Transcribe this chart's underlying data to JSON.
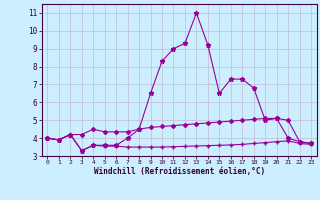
{
  "x": [
    0,
    1,
    2,
    3,
    4,
    5,
    6,
    7,
    8,
    9,
    10,
    11,
    12,
    13,
    14,
    15,
    16,
    17,
    18,
    19,
    20,
    21,
    22,
    23
  ],
  "line1": [
    4.0,
    3.9,
    4.2,
    3.3,
    3.6,
    3.6,
    3.6,
    4.0,
    4.5,
    6.5,
    8.3,
    9.0,
    9.3,
    11.0,
    9.2,
    6.5,
    7.3,
    7.3,
    6.8,
    5.0,
    5.1,
    4.0,
    3.8,
    3.7
  ],
  "line2": [
    4.0,
    3.9,
    4.2,
    4.2,
    4.5,
    4.35,
    4.35,
    4.35,
    4.5,
    4.6,
    4.65,
    4.7,
    4.75,
    4.8,
    4.85,
    4.9,
    4.95,
    5.0,
    5.05,
    5.1,
    5.1,
    5.0,
    3.8,
    3.7
  ],
  "line3": [
    4.0,
    3.9,
    4.2,
    3.3,
    3.6,
    3.55,
    3.55,
    3.5,
    3.5,
    3.5,
    3.5,
    3.52,
    3.54,
    3.56,
    3.58,
    3.6,
    3.62,
    3.65,
    3.7,
    3.75,
    3.8,
    3.85,
    3.7,
    3.65
  ],
  "color": "#990099",
  "bg_color": "#cceeff",
  "grid_color": "#bbbbcc",
  "xlabel": "Windchill (Refroidissement éolien,°C)",
  "ylim": [
    3.0,
    11.5
  ],
  "xlim": [
    -0.5,
    23.5
  ],
  "yticks": [
    3,
    4,
    5,
    6,
    7,
    8,
    9,
    10,
    11
  ],
  "xtick_labels": [
    "0",
    "1",
    "2",
    "3",
    "4",
    "5",
    "6",
    "7",
    "8",
    "9",
    "10",
    "11",
    "12",
    "13",
    "14",
    "15",
    "16",
    "17",
    "18",
    "19",
    "20",
    "21",
    "22",
    "23"
  ]
}
